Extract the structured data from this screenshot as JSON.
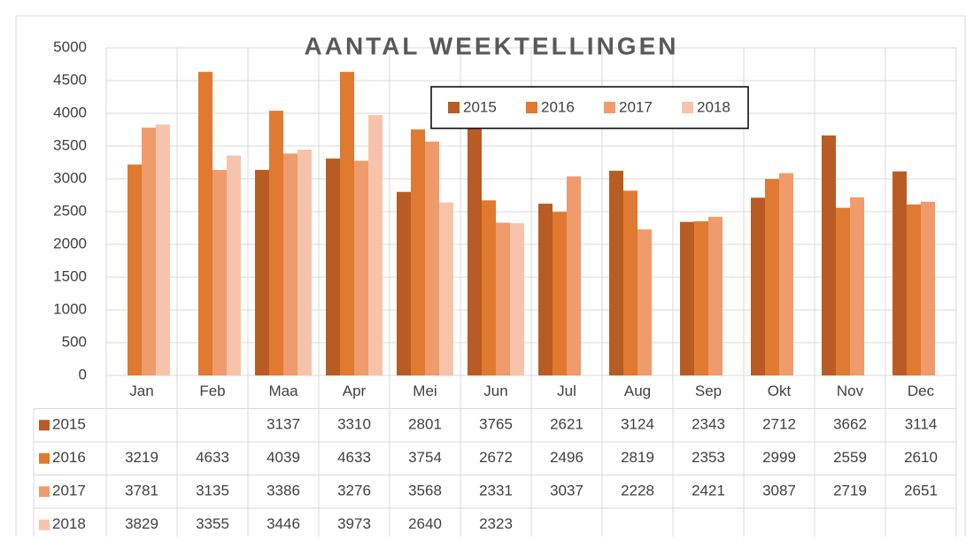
{
  "chart_data": {
    "type": "bar",
    "title": "AANTAL WEEKTELLINGEN",
    "categories": [
      "Jan",
      "Feb",
      "Maa",
      "Apr",
      "Mei",
      "Jun",
      "Jul",
      "Aug",
      "Sep",
      "Okt",
      "Nov",
      "Dec"
    ],
    "series": [
      {
        "name": "2015",
        "color": "#b85c24",
        "values": [
          null,
          null,
          3137,
          3310,
          2801,
          3765,
          2621,
          3124,
          2343,
          2712,
          3662,
          3114
        ]
      },
      {
        "name": "2016",
        "color": "#e07a30",
        "values": [
          3219,
          4633,
          4039,
          4633,
          3754,
          2672,
          2496,
          2819,
          2353,
          2999,
          2559,
          2610
        ]
      },
      {
        "name": "2017",
        "color": "#f09b6c",
        "values": [
          3781,
          3135,
          3386,
          3276,
          3568,
          2331,
          3037,
          2228,
          2421,
          3087,
          2719,
          2651
        ]
      },
      {
        "name": "2018",
        "color": "#f7c4ab",
        "values": [
          3829,
          3355,
          3446,
          3973,
          2640,
          2323,
          null,
          null,
          null,
          null,
          null,
          null
        ]
      }
    ],
    "ylim": [
      0,
      5000
    ],
    "yticks": [
      0,
      500,
      1000,
      1500,
      2000,
      2500,
      3000,
      3500,
      4000,
      4500,
      5000
    ],
    "grid": true,
    "legend": "top"
  }
}
